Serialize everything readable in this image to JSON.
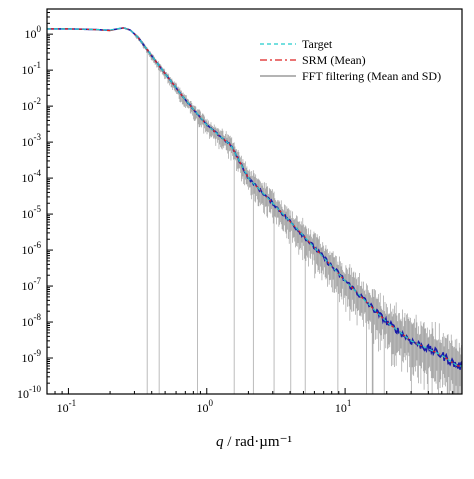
{
  "chart_data": {
    "type": "line",
    "title": "",
    "xlabel": "q / rad·µm⁻¹",
    "ylabel": "",
    "xscale": "log",
    "yscale": "log",
    "xlim": [
      0.07,
      70
    ],
    "ylim": [
      1e-10,
      5
    ],
    "grid": false,
    "legend_position": "top-right",
    "x_ticks": [
      {
        "value": 0.1,
        "base": "10",
        "exp": "-1"
      },
      {
        "value": 1,
        "base": "10",
        "exp": "0"
      },
      {
        "value": 10,
        "base": "10",
        "exp": "1"
      }
    ],
    "y_ticks": [
      {
        "value": 1,
        "base": "10",
        "exp": "0"
      },
      {
        "value": 0.1,
        "base": "10",
        "exp": "-1"
      },
      {
        "value": 0.01,
        "base": "10",
        "exp": "-2"
      },
      {
        "value": 0.001,
        "base": "10",
        "exp": "-3"
      },
      {
        "value": 0.0001,
        "base": "10",
        "exp": "-4"
      },
      {
        "value": 1e-05,
        "base": "10",
        "exp": "-5"
      },
      {
        "value": 1e-06,
        "base": "10",
        "exp": "-6"
      },
      {
        "value": 1e-07,
        "base": "10",
        "exp": "-7"
      },
      {
        "value": 1e-08,
        "base": "10",
        "exp": "-8"
      },
      {
        "value": 1e-09,
        "base": "10",
        "exp": "-9"
      },
      {
        "value": 1e-10,
        "base": "10",
        "exp": "-10"
      }
    ],
    "series": [
      {
        "name": "Target",
        "style": "dashed",
        "color": "#22cccc",
        "x": [
          0.07,
          0.1,
          0.15,
          0.2,
          0.25,
          0.28,
          0.32,
          0.4,
          0.5,
          0.7,
          1.0,
          1.5,
          2.0,
          3.0,
          5.0,
          10,
          20,
          30,
          50,
          65
        ],
        "y": [
          1.4,
          1.4,
          1.35,
          1.3,
          1.5,
          1.3,
          0.8,
          0.25,
          0.08,
          0.015,
          0.003,
          0.0008,
          0.0001,
          2e-05,
          2.5e-06,
          1.4e-07,
          1e-08,
          3e-09,
          1.2e-09,
          6e-10
        ]
      },
      {
        "name": "SRM (Mean)",
        "style": "dashdot",
        "color": "#dd2222",
        "x": [
          0.07,
          0.1,
          0.15,
          0.2,
          0.25,
          0.28,
          0.32,
          0.4,
          0.5,
          0.7,
          1.0,
          1.5,
          2.0,
          3.0,
          5.0,
          10,
          20,
          30,
          50,
          65
        ],
        "y": [
          1.4,
          1.4,
          1.35,
          1.25,
          1.5,
          1.3,
          0.8,
          0.25,
          0.08,
          0.015,
          0.003,
          0.0008,
          0.0001,
          2e-05,
          2.5e-06,
          1.4e-07,
          1e-08,
          3e-09,
          1.2e-09,
          6e-10
        ]
      },
      {
        "name": "FFT filtering (Mean and SD)",
        "style": "solid",
        "color": "#1a1aa8",
        "error_color": "#888888",
        "x": [
          0.07,
          0.1,
          0.15,
          0.2,
          0.25,
          0.28,
          0.32,
          0.4,
          0.5,
          0.7,
          1.0,
          1.5,
          2.0,
          3.0,
          5.0,
          10,
          20,
          30,
          50,
          65
        ],
        "y": [
          1.4,
          1.4,
          1.35,
          1.28,
          1.5,
          1.3,
          0.8,
          0.25,
          0.08,
          0.015,
          0.003,
          0.0008,
          0.0001,
          2e-05,
          2.5e-06,
          1.4e-07,
          1e-08,
          3e-09,
          1.2e-09,
          6e-10
        ]
      }
    ],
    "legend": [
      {
        "label": "Target",
        "style": "dashed",
        "color": "#22cccc"
      },
      {
        "label": "SRM (Mean)",
        "style": "dashdot",
        "color": "#dd2222"
      },
      {
        "label": "FFT filtering (Mean and SD)",
        "style": "solid",
        "color": "#888888"
      }
    ]
  }
}
